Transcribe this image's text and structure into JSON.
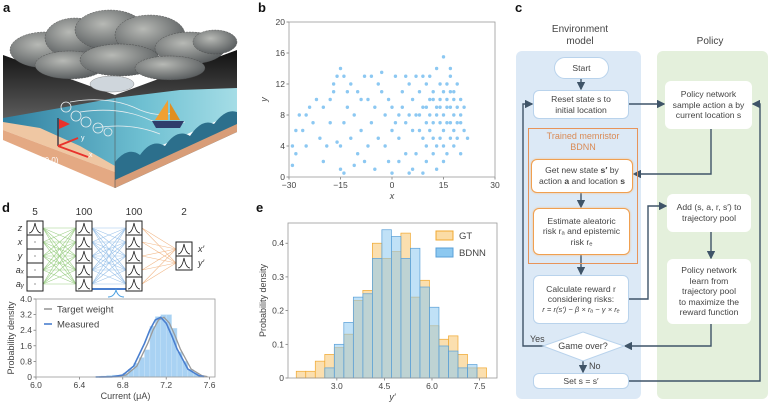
{
  "panels": {
    "a": "a",
    "b": "b",
    "c": "c",
    "d": "d",
    "e": "e"
  },
  "illustration_a": {
    "origin_label": "(0,0)",
    "x_axis_label": "x",
    "y_axis_label": "y",
    "colors": {
      "sand": "#e9b48e",
      "water_dark": "#2c6f8c",
      "water_light": "#8fd3df",
      "sky_dark": "#1a1a1a",
      "cloud": "#7c7f80",
      "sail": "#f0a033",
      "hull": "#2f3d6b",
      "flag": "#e8322c",
      "axis": "#e8322c"
    }
  },
  "flowchart_c": {
    "env_title_line1": "Environment",
    "env_title_line2": "model",
    "policy_title": "Policy",
    "start": "Start",
    "reset_line1": "Reset state s to",
    "reset_line2": "initial location",
    "bdnn_title_line1": "Trained memristor",
    "bdnn_title_line2": "BDNN",
    "get_state": {
      "p1": "Get new state ",
      "s_prime": "s′",
      "p2": " by",
      "p3": "action ",
      "a": "a",
      "p4": " and location ",
      "s": "s"
    },
    "estimate_line1": "Estimate aleatoric",
    "estimate_line2": "risk rₐ and epistemic",
    "estimate_line3": "risk rₑ",
    "reward_line1": "Calculate reward r",
    "reward_line2": "considering risks:",
    "reward_formula": "r = r(s′) − β × rₐ − γ × rₑ",
    "game_over": "Game over?",
    "yes": "Yes",
    "no": "No",
    "set_state": "Set s = s′",
    "policy_sample_line1": "Policy network",
    "policy_sample_line2": "sample action a by",
    "policy_sample_line3": "current location s",
    "add_line1": "Add (s, a, r, s′) to",
    "add_line2": "trajectory pool",
    "learn_line1": "Policy network",
    "learn_line2": "learn from",
    "learn_line3": "trajectory pool",
    "learn_line4": "to maximize the",
    "learn_line5": "reward function",
    "colors": {
      "env_bg": "#dce9f6",
      "policy_bg": "#e4f0dc",
      "bdnn_border": "#e8945a",
      "arrow": "#3f5468"
    }
  },
  "network_d": {
    "layer_sizes": [
      "5",
      "100",
      "100",
      "2"
    ],
    "inputs": [
      "z",
      "x",
      "y",
      "aₓ",
      "aᵧ"
    ],
    "outputs": [
      "x′",
      "y′"
    ],
    "colors": {
      "layer1": "#9ccf86",
      "layer2": "#9cc3ea",
      "layer3": "#f2b98a"
    }
  },
  "chart_data": [
    {
      "panel": "b",
      "type": "scatter",
      "xlabel": "x",
      "ylabel": "y",
      "xlim": [
        -30,
        30
      ],
      "ylim": [
        0,
        20
      ],
      "xticks": [
        -30,
        -15,
        0,
        15,
        30
      ],
      "xtick_labels": [
        "−30",
        "−15",
        "0",
        "15",
        "30"
      ],
      "yticks": [
        0,
        4,
        8,
        12,
        16,
        20
      ],
      "ytick_labels": [
        "0",
        "4",
        "8",
        "12",
        "16",
        "20"
      ],
      "color": "#8cc8f2",
      "points": [
        [
          8,
          8
        ],
        [
          10,
          9
        ],
        [
          12,
          7
        ],
        [
          14,
          10
        ],
        [
          16,
          9
        ],
        [
          18,
          8
        ],
        [
          20,
          10
        ],
        [
          15,
          6
        ],
        [
          17,
          11
        ],
        [
          19,
          5
        ],
        [
          13,
          4
        ],
        [
          11,
          6
        ],
        [
          9,
          5
        ],
        [
          7,
          3
        ],
        [
          6,
          1
        ],
        [
          10,
          2
        ],
        [
          12,
          3
        ],
        [
          16,
          3
        ],
        [
          18,
          4
        ],
        [
          20,
          7
        ],
        [
          21,
          9
        ],
        [
          19,
          12
        ],
        [
          17,
          13
        ],
        [
          14,
          12
        ],
        [
          12,
          11
        ],
        [
          10,
          12
        ],
        [
          8,
          11
        ],
        [
          6,
          10
        ],
        [
          5,
          8
        ],
        [
          4,
          7
        ],
        [
          3,
          9
        ],
        [
          2,
          8
        ],
        [
          1,
          7
        ],
        [
          0,
          9
        ],
        [
          -1,
          10
        ],
        [
          -2,
          8
        ],
        [
          -3,
          11
        ],
        [
          -4,
          12
        ],
        [
          -5,
          9
        ],
        [
          -6,
          7
        ],
        [
          -7,
          10
        ],
        [
          -8,
          13
        ],
        [
          -6,
          13
        ],
        [
          -4,
          5
        ],
        [
          -2,
          4
        ],
        [
          0,
          6
        ],
        [
          2,
          5
        ],
        [
          4,
          3
        ],
        [
          5,
          0.5
        ],
        [
          15,
          8
        ],
        [
          16,
          7
        ],
        [
          17,
          9
        ],
        [
          18,
          10
        ],
        [
          19,
          9
        ],
        [
          20,
          8
        ],
        [
          14,
          7
        ],
        [
          13,
          9
        ],
        [
          15,
          11
        ],
        [
          16,
          12
        ],
        [
          18,
          6
        ],
        [
          17,
          5
        ],
        [
          14,
          5
        ],
        [
          11,
          8
        ],
        [
          9,
          9
        ],
        [
          7,
          8
        ],
        [
          6,
          6
        ],
        [
          8,
          6
        ],
        [
          10,
          7
        ],
        [
          12,
          10
        ],
        [
          21,
          6
        ],
        [
          22,
          5
        ],
        [
          20,
          3
        ],
        [
          15,
          2
        ],
        [
          13,
          1
        ],
        [
          9,
          0.5
        ],
        [
          11,
          13
        ],
        [
          13,
          14
        ],
        [
          15,
          15.5
        ],
        [
          17,
          14
        ],
        [
          9,
          13
        ],
        [
          5,
          12
        ],
        [
          1,
          13
        ],
        [
          -3,
          13.5
        ],
        [
          -10,
          11
        ],
        [
          -12,
          12
        ],
        [
          -14,
          13
        ],
        [
          -15,
          14
        ],
        [
          -16,
          13
        ],
        [
          -17,
          12
        ],
        [
          -18,
          10
        ],
        [
          -20,
          9
        ],
        [
          -22,
          10
        ],
        [
          -24,
          9
        ],
        [
          -25,
          8
        ],
        [
          -27,
          8
        ],
        [
          -28,
          6
        ],
        [
          -29,
          4
        ],
        [
          -28,
          3
        ],
        [
          -29,
          1.5
        ],
        [
          -26,
          6
        ],
        [
          -23,
          7
        ],
        [
          -21,
          5
        ],
        [
          -19,
          4
        ],
        [
          -16,
          4.5
        ],
        [
          -15,
          4
        ],
        [
          -14,
          7
        ],
        [
          -13,
          9
        ],
        [
          -11,
          8
        ],
        [
          -12,
          5
        ],
        [
          -10,
          3
        ],
        [
          -9,
          6
        ],
        [
          -8,
          2
        ],
        [
          -7,
          4
        ],
        [
          -15,
          1
        ],
        [
          -14,
          0.5
        ],
        [
          -11,
          1.5
        ],
        [
          -20,
          2
        ],
        [
          -25,
          4
        ],
        [
          -18,
          7
        ],
        [
          -17,
          11
        ],
        [
          -13,
          11
        ],
        [
          -9,
          10
        ],
        [
          -5,
          1
        ],
        [
          0,
          0.5
        ],
        [
          2,
          2
        ],
        [
          3,
          11
        ],
        [
          4,
          13
        ],
        [
          7,
          13
        ],
        [
          -1,
          2
        ],
        [
          16,
          10
        ],
        [
          18,
          11
        ],
        [
          19,
          7
        ],
        [
          14,
          9
        ],
        [
          12,
          5
        ],
        [
          10,
          4
        ],
        [
          13,
          8
        ],
        [
          15,
          4
        ],
        [
          17,
          7
        ],
        [
          11,
          10
        ]
      ]
    },
    {
      "panel": "d",
      "type": "bar",
      "xlabel": "Current (μA)",
      "ylabel": "Probability density",
      "xlim": [
        6.0,
        7.65
      ],
      "ylim": [
        0,
        4.0
      ],
      "xticks": [
        6.0,
        6.4,
        6.8,
        7.2,
        7.6
      ],
      "xtick_labels": [
        "6.0",
        "6.4",
        "6.8",
        "7.2",
        "7.6"
      ],
      "yticks": [
        0,
        0.8,
        1.6,
        2.4,
        3.2,
        4.0
      ],
      "ytick_labels": [
        "0",
        "0.8",
        "1.6",
        "2.4",
        "3.2",
        "4.0"
      ],
      "bin_width": 0.05,
      "bin_left_edges": [
        6.55,
        6.6,
        6.65,
        6.7,
        6.75,
        6.8,
        6.85,
        6.9,
        6.95,
        7.0,
        7.05,
        7.1,
        7.15,
        7.2,
        7.25,
        7.3,
        7.35,
        7.4,
        7.45,
        7.5
      ],
      "values": [
        0.03,
        0.05,
        0.08,
        0.1,
        0.05,
        0.2,
        0.4,
        0.7,
        1.0,
        1.4,
        2.6,
        3.1,
        3.2,
        3.2,
        2.5,
        1.3,
        0.8,
        0.4,
        0.2,
        0.05
      ],
      "bar_color": "#a9d2f3",
      "series": [
        {
          "name": "Target weight",
          "type": "line",
          "color": "#9a9a9a",
          "x": [
            6.58,
            6.73,
            6.83,
            6.93,
            7.03,
            7.08,
            7.13,
            7.18,
            7.23,
            7.28,
            7.33,
            7.43,
            7.53,
            7.58
          ],
          "y": [
            0.0,
            0.01,
            0.1,
            0.56,
            1.72,
            2.42,
            2.93,
            3.06,
            2.76,
            2.14,
            1.44,
            0.41,
            0.07,
            0.02
          ]
        },
        {
          "name": "Measured",
          "type": "line",
          "color": "#4a7fcf",
          "x": [
            6.55,
            6.7,
            6.8,
            6.9,
            7.0,
            7.05,
            7.1,
            7.15,
            7.2,
            7.25,
            7.3,
            7.4,
            7.5,
            7.55
          ],
          "y": [
            0.0,
            0.01,
            0.1,
            0.56,
            1.72,
            2.42,
            2.93,
            3.06,
            2.76,
            2.14,
            1.44,
            0.41,
            0.07,
            0.02
          ]
        }
      ]
    },
    {
      "panel": "e",
      "type": "bar",
      "xlabel": "y′",
      "ylabel": "Probability density",
      "xlim": [
        1.46,
        8.05
      ],
      "ylim": [
        0,
        0.46
      ],
      "xticks": [
        3.0,
        4.5,
        6.0,
        7.5
      ],
      "xtick_labels": [
        "3.0",
        "4.5",
        "6.0",
        "7.5"
      ],
      "yticks": [
        0,
        0.1,
        0.2,
        0.3,
        0.4
      ],
      "ytick_labels": [
        "0",
        "0.1",
        "0.2",
        "0.3",
        "0.4"
      ],
      "bin_width": 0.3,
      "bin_centers": [
        1.87,
        2.17,
        2.47,
        2.77,
        3.07,
        3.37,
        3.67,
        3.97,
        4.27,
        4.57,
        4.87,
        5.17,
        5.47,
        5.77,
        6.07,
        6.37,
        6.67,
        6.97,
        7.27,
        7.57
      ],
      "legend_position": "top-right",
      "series": [
        {
          "name": "GT",
          "fill": "#fbdca6",
          "stroke": "#f0a830",
          "values": [
            0.02,
            0.02,
            0.05,
            0.07,
            0.09,
            0.13,
            0.23,
            0.26,
            0.4,
            0.355,
            0.375,
            0.43,
            0.24,
            0.29,
            0.155,
            0.115,
            0.125,
            0.07,
            0.03,
            0.03
          ]
        },
        {
          "name": "BDNN",
          "fill": "#8cc8f0",
          "stroke": "#5aa0d8",
          "values": [
            0,
            0,
            0,
            0.03,
            0.1,
            0.165,
            0.24,
            0.25,
            0.355,
            0.44,
            0.42,
            0.355,
            0.385,
            0.27,
            0.21,
            0.095,
            0.08,
            0.03,
            0.04,
            0
          ]
        }
      ]
    }
  ]
}
